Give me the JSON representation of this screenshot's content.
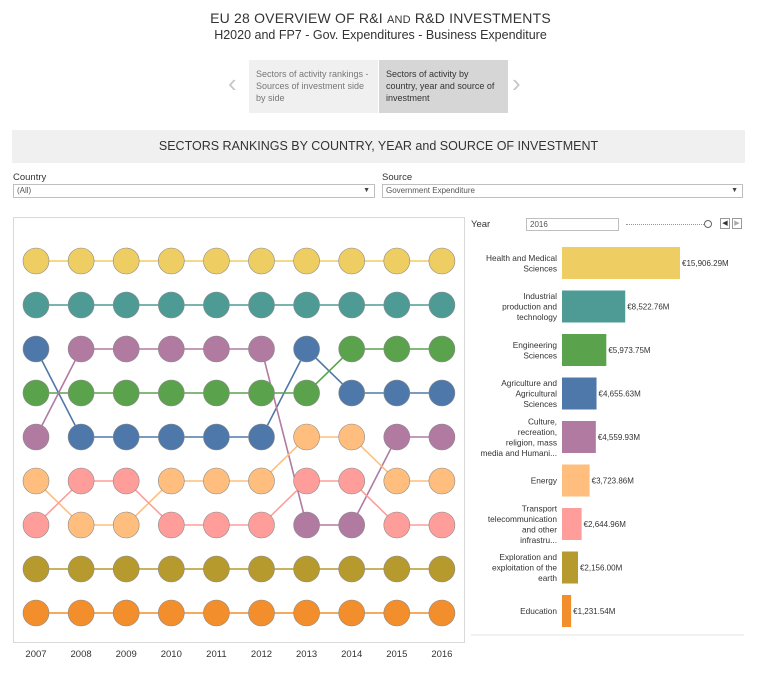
{
  "header": {
    "title_main": "EU 28 OVERVIEW OF R&I",
    "title_and": "AND",
    "title_rest": "R&D INVESTMENTS",
    "subtitle": "H2020 and FP7 - Gov. Expenditures - Business Expenditure"
  },
  "story": {
    "points": [
      {
        "label": "Sectors of activity rankings - Sources of investment side by side"
      },
      {
        "label": "Sectors of activity by country, year and source of investment"
      }
    ]
  },
  "banner": {
    "title": "SECTORS RANKINGS BY COUNTRY, YEAR and SOURCE OF INVESTMENT"
  },
  "filters": {
    "country": {
      "label": "Country",
      "value": "(All)"
    },
    "source": {
      "label": "Source",
      "value": "Government Expenditure"
    },
    "year": {
      "label": "Year",
      "value": "2016"
    }
  },
  "colors": {
    "health": "#eecd62",
    "industrial": "#4d9b94",
    "engineering": "#5ba24d",
    "agriculture": "#4e78a9",
    "culture": "#b07aa1",
    "energy": "#ffbe7d",
    "transport": "#ff9d9a",
    "exploration": "#b69a2e",
    "education": "#f28e2b"
  },
  "chart_data": [
    {
      "type": "line",
      "subtype": "bump",
      "x": [
        "2007",
        "2008",
        "2009",
        "2010",
        "2011",
        "2012",
        "2013",
        "2014",
        "2015",
        "2016"
      ],
      "y_meaning": "rank (1 = top)",
      "grid": false,
      "series": [
        {
          "key": "health",
          "ranks": [
            1,
            1,
            1,
            1,
            1,
            1,
            1,
            1,
            1,
            1
          ]
        },
        {
          "key": "industrial",
          "ranks": [
            2,
            2,
            2,
            2,
            2,
            2,
            2,
            2,
            2,
            2
          ]
        },
        {
          "key": "agriculture",
          "ranks": [
            3,
            5,
            5,
            5,
            5,
            5,
            3,
            4,
            4,
            4
          ]
        },
        {
          "key": "engineering",
          "ranks": [
            4,
            4,
            4,
            4,
            4,
            4,
            4,
            3,
            3,
            3
          ]
        },
        {
          "key": "culture",
          "ranks": [
            5,
            3,
            3,
            3,
            3,
            3,
            7,
            7,
            5,
            5
          ]
        },
        {
          "key": "energy",
          "ranks": [
            6,
            7,
            7,
            6,
            6,
            6,
            5,
            5,
            6,
            6
          ]
        },
        {
          "key": "transport",
          "ranks": [
            7,
            6,
            6,
            7,
            7,
            7,
            6,
            6,
            7,
            7
          ]
        },
        {
          "key": "exploration",
          "ranks": [
            8,
            8,
            8,
            8,
            8,
            8,
            8,
            8,
            8,
            8
          ]
        },
        {
          "key": "education",
          "ranks": [
            9,
            9,
            9,
            9,
            9,
            9,
            9,
            9,
            9,
            9
          ]
        }
      ]
    },
    {
      "type": "bar",
      "orientation": "horizontal",
      "year": "2016",
      "unit": "€M",
      "categories": [
        "Health and Medical Sciences",
        "Industrial production and technology",
        "Engineering Sciences",
        "Agriculture and Agricultural Sciences",
        "Culture, recreation, religion, mass media and Humani...",
        "Energy",
        "Transport telecommunication and other infrastru...",
        "Exploration and exploitation of the earth",
        "Education"
      ],
      "values": [
        15906.29,
        8522.76,
        5973.75,
        4655.63,
        4559.93,
        3723.86,
        2644.96,
        2156.0,
        1231.54
      ],
      "value_labels": [
        "€15,906.29M",
        "€8,522.76M",
        "€5,973.75M",
        "€4,655.63M",
        "€4,559.93M",
        "€3,723.86M",
        "€2,644.96M",
        "€2,156.00M",
        "€1,231.54M"
      ],
      "keys": [
        "health",
        "industrial",
        "engineering",
        "agriculture",
        "culture",
        "energy",
        "transport",
        "exploration",
        "education"
      ]
    }
  ]
}
